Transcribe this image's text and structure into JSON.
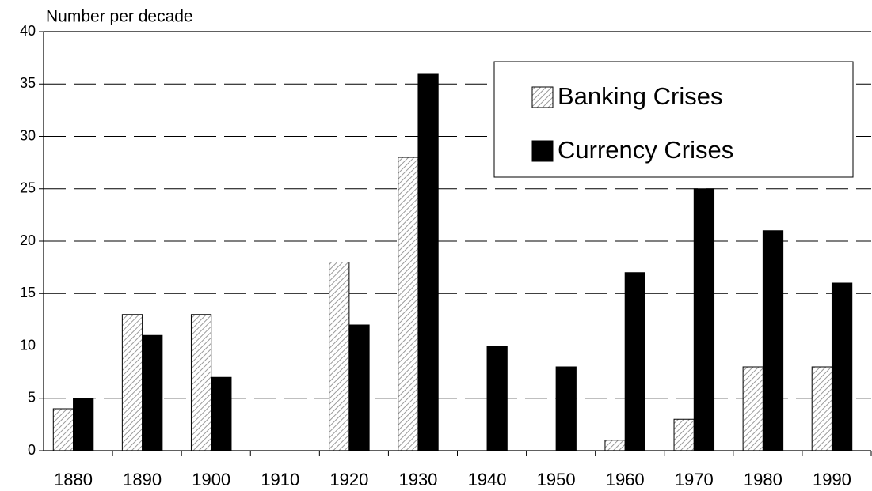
{
  "chart_data": {
    "type": "bar",
    "y_label": "Number per decade",
    "categories": [
      "1880",
      "1890",
      "1900",
      "1910",
      "1920",
      "1930",
      "1940",
      "1950",
      "1960",
      "1970",
      "1980",
      "1990"
    ],
    "series": [
      {
        "name": "Banking Crises",
        "color": "#cfcfcf",
        "values": [
          4,
          13,
          13,
          0,
          18,
          28,
          0,
          0,
          1,
          3,
          8,
          8
        ]
      },
      {
        "name": "Currency Crises",
        "color": "#000000",
        "values": [
          5,
          11,
          7,
          0,
          12,
          36,
          10,
          8,
          17,
          25,
          21,
          16
        ]
      }
    ],
    "ylim": [
      0,
      40
    ],
    "yticks": [
      0,
      5,
      10,
      15,
      20,
      25,
      30,
      35,
      40
    ],
    "grid": true,
    "legend": "upper right"
  }
}
